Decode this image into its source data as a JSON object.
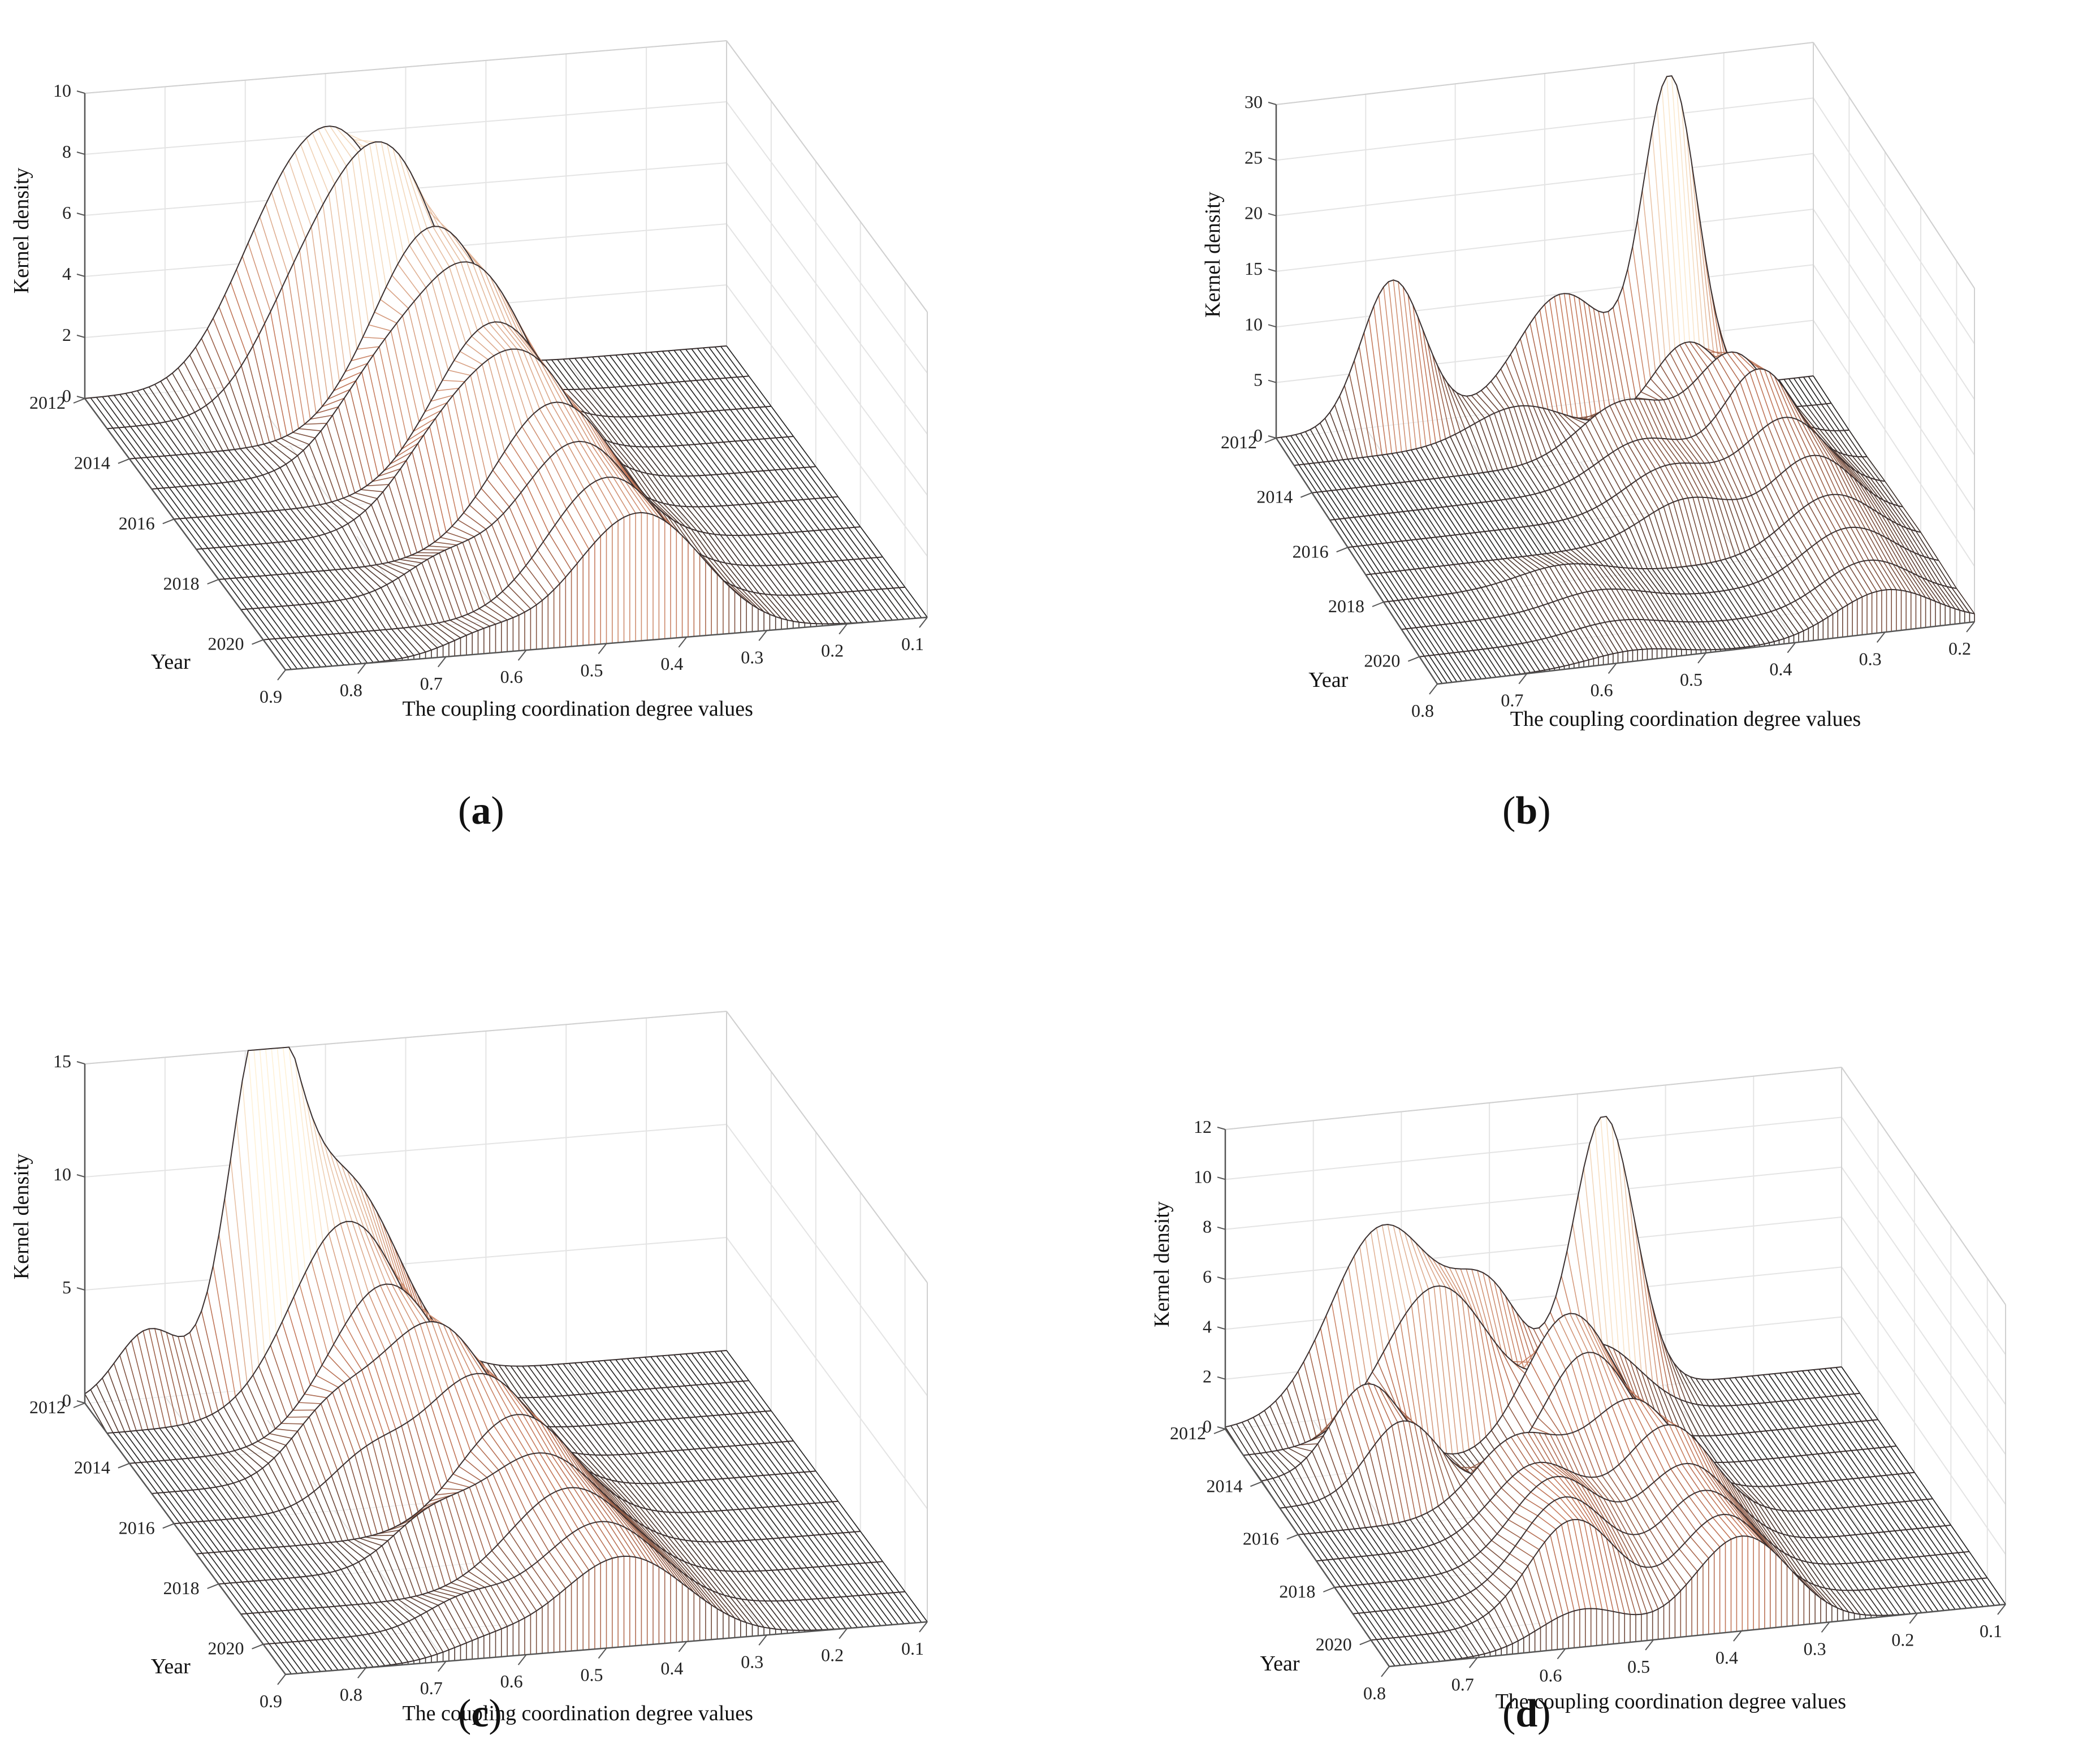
{
  "chart_data": [
    {
      "id": "a",
      "type": "surface",
      "panel_label": "a",
      "xlabel": "The coupling coordination degree values",
      "ylabel": "Year",
      "zlabel": "Kernel density",
      "xlim": [
        0.1,
        0.9
      ],
      "x_ticks": [
        "0.9",
        "0.8",
        "0.7",
        "0.6",
        "0.5",
        "0.4",
        "0.3",
        "0.2",
        "0.1"
      ],
      "year_ticks": [
        "2012",
        "2014",
        "2016",
        "2018",
        "2020"
      ],
      "z_ticks": [
        "0",
        "2",
        "4",
        "6",
        "8",
        "10"
      ],
      "zlim": [
        0,
        10
      ],
      "years": [
        2012,
        2013,
        2014,
        2015,
        2016,
        2017,
        2018,
        2019,
        2020,
        2021
      ],
      "densities": [
        {
          "year": 2012,
          "peaks": [
            {
              "center": 0.58,
              "height": 7.5,
              "width": 0.075
            },
            {
              "center": 0.68,
              "height": 2.5,
              "width": 0.06
            }
          ]
        },
        {
          "year": 2013,
          "peaks": [
            {
              "center": 0.55,
              "height": 8.0,
              "width": 0.07
            },
            {
              "center": 0.66,
              "height": 3.0,
              "width": 0.06
            }
          ]
        },
        {
          "year": 2014,
          "peaks": [
            {
              "center": 0.52,
              "height": 6.8,
              "width": 0.075
            }
          ]
        },
        {
          "year": 2015,
          "peaks": [
            {
              "center": 0.5,
              "height": 6.2,
              "width": 0.07
            },
            {
              "center": 0.62,
              "height": 2.5,
              "width": 0.06
            }
          ]
        },
        {
          "year": 2016,
          "peaks": [
            {
              "center": 0.5,
              "height": 5.6,
              "width": 0.075
            }
          ]
        },
        {
          "year": 2017,
          "peaks": [
            {
              "center": 0.49,
              "height": 5.2,
              "width": 0.07
            },
            {
              "center": 0.6,
              "height": 2.2,
              "width": 0.06
            }
          ]
        },
        {
          "year": 2018,
          "peaks": [
            {
              "center": 0.48,
              "height": 4.9,
              "width": 0.075
            }
          ]
        },
        {
          "year": 2019,
          "peaks": [
            {
              "center": 0.48,
              "height": 4.6,
              "width": 0.075
            },
            {
              "center": 0.65,
              "height": 1.0,
              "width": 0.05
            }
          ]
        },
        {
          "year": 2020,
          "peaks": [
            {
              "center": 0.47,
              "height": 4.4,
              "width": 0.075
            }
          ]
        },
        {
          "year": 2021,
          "peaks": [
            {
              "center": 0.46,
              "height": 4.2,
              "width": 0.08
            },
            {
              "center": 0.65,
              "height": 0.6,
              "width": 0.05
            }
          ]
        }
      ]
    },
    {
      "id": "b",
      "type": "surface",
      "panel_label": "b",
      "xlabel": "The coupling coordination degree values",
      "ylabel": "Year",
      "zlabel": "Kernel density",
      "xlim": [
        0.2,
        0.8
      ],
      "x_ticks": [
        "0.8",
        "0.7",
        "0.6",
        "0.5",
        "0.4",
        "0.3",
        "0.2"
      ],
      "year_ticks": [
        "2012",
        "2014",
        "2016",
        "2018",
        "2020"
      ],
      "z_ticks": [
        "0",
        "5",
        "10",
        "15",
        "20",
        "25",
        "30"
      ],
      "zlim": [
        0,
        30
      ],
      "years": [
        2012,
        2013,
        2014,
        2015,
        2016,
        2017,
        2018,
        2019,
        2020,
        2021
      ],
      "densities": [
        {
          "year": 2012,
          "peaks": [
            {
              "center": 0.67,
              "height": 13.0,
              "width": 0.035
            },
            {
              "center": 0.48,
              "height": 10.0,
              "width": 0.05
            },
            {
              "center": 0.36,
              "height": 28.0,
              "width": 0.03
            }
          ]
        },
        {
          "year": 2013,
          "peaks": [
            {
              "center": 0.55,
              "height": 3.0,
              "width": 0.05
            },
            {
              "center": 0.36,
              "height": 7.0,
              "width": 0.04
            }
          ]
        },
        {
          "year": 2014,
          "peaks": [
            {
              "center": 0.45,
              "height": 5.0,
              "width": 0.05
            },
            {
              "center": 0.33,
              "height": 8.0,
              "width": 0.04
            }
          ]
        },
        {
          "year": 2015,
          "peaks": [
            {
              "center": 0.45,
              "height": 4.0,
              "width": 0.05
            },
            {
              "center": 0.32,
              "height": 9.0,
              "width": 0.04
            }
          ]
        },
        {
          "year": 2016,
          "peaks": [
            {
              "center": 0.44,
              "height": 4.0,
              "width": 0.05
            },
            {
              "center": 0.31,
              "height": 7.0,
              "width": 0.045
            }
          ]
        },
        {
          "year": 2017,
          "peaks": [
            {
              "center": 0.44,
              "height": 3.5,
              "width": 0.05
            },
            {
              "center": 0.3,
              "height": 6.0,
              "width": 0.045
            }
          ]
        },
        {
          "year": 2018,
          "peaks": [
            {
              "center": 0.6,
              "height": 1.5,
              "width": 0.05
            },
            {
              "center": 0.3,
              "height": 5.0,
              "width": 0.05
            }
          ]
        },
        {
          "year": 2019,
          "peaks": [
            {
              "center": 0.58,
              "height": 1.5,
              "width": 0.05
            },
            {
              "center": 0.3,
              "height": 4.5,
              "width": 0.05
            }
          ]
        },
        {
          "year": 2020,
          "peaks": [
            {
              "center": 0.58,
              "height": 1.2,
              "width": 0.05
            },
            {
              "center": 0.3,
              "height": 4.0,
              "width": 0.05
            }
          ]
        },
        {
          "year": 2021,
          "peaks": [
            {
              "center": 0.58,
              "height": 1.0,
              "width": 0.05
            },
            {
              "center": 0.3,
              "height": 3.8,
              "width": 0.055
            }
          ]
        }
      ]
    },
    {
      "id": "c",
      "type": "surface",
      "panel_label": "c",
      "xlabel": "The coupling coordination degree values",
      "ylabel": "Year",
      "zlabel": "Kernel density",
      "xlim": [
        0.1,
        0.9
      ],
      "x_ticks": [
        "0.9",
        "0.8",
        "0.7",
        "0.6",
        "0.5",
        "0.4",
        "0.3",
        "0.2",
        "0.1"
      ],
      "year_ticks": [
        "2012",
        "2014",
        "2016",
        "2018",
        "2020"
      ],
      "z_ticks": [
        "0",
        "5",
        "10",
        "15"
      ],
      "zlim": [
        0,
        15
      ],
      "years": [
        2012,
        2013,
        2014,
        2015,
        2016,
        2017,
        2018,
        2019,
        2020,
        2021
      ],
      "densities": [
        {
          "year": 2012,
          "peaks": [
            {
              "center": 0.68,
              "height": 14.0,
              "width": 0.04
            },
            {
              "center": 0.58,
              "height": 9.0,
              "width": 0.07
            },
            {
              "center": 0.82,
              "height": 3.0,
              "width": 0.04
            }
          ]
        },
        {
          "year": 2013,
          "peaks": [
            {
              "center": 0.6,
              "height": 8.5,
              "width": 0.07
            }
          ]
        },
        {
          "year": 2014,
          "peaks": [
            {
              "center": 0.58,
              "height": 7.0,
              "width": 0.07
            }
          ]
        },
        {
          "year": 2015,
          "peaks": [
            {
              "center": 0.55,
              "height": 6.5,
              "width": 0.07
            },
            {
              "center": 0.68,
              "height": 2.5,
              "width": 0.05
            }
          ]
        },
        {
          "year": 2016,
          "peaks": [
            {
              "center": 0.52,
              "height": 5.5,
              "width": 0.07
            },
            {
              "center": 0.66,
              "height": 2.0,
              "width": 0.05
            }
          ]
        },
        {
          "year": 2017,
          "peaks": [
            {
              "center": 0.5,
              "height": 5.0,
              "width": 0.07
            }
          ]
        },
        {
          "year": 2018,
          "peaks": [
            {
              "center": 0.5,
              "height": 4.6,
              "width": 0.075
            },
            {
              "center": 0.64,
              "height": 1.8,
              "width": 0.05
            }
          ]
        },
        {
          "year": 2019,
          "peaks": [
            {
              "center": 0.49,
              "height": 4.4,
              "width": 0.075
            }
          ]
        },
        {
          "year": 2020,
          "peaks": [
            {
              "center": 0.48,
              "height": 4.2,
              "width": 0.075
            },
            {
              "center": 0.65,
              "height": 1.2,
              "width": 0.05
            }
          ]
        },
        {
          "year": 2021,
          "peaks": [
            {
              "center": 0.48,
              "height": 4.0,
              "width": 0.08
            },
            {
              "center": 0.65,
              "height": 0.6,
              "width": 0.05
            }
          ]
        }
      ]
    },
    {
      "id": "d",
      "type": "surface",
      "panel_label": "d",
      "xlabel": "The coupling coordination degree values",
      "ylabel": "Year",
      "zlabel": "Kernel density",
      "xlim": [
        0.1,
        0.8
      ],
      "x_ticks": [
        "0.8",
        "0.7",
        "0.6",
        "0.5",
        "0.4",
        "0.3",
        "0.2",
        "0.1"
      ],
      "year_ticks": [
        "2012",
        "2014",
        "2016",
        "2018",
        "2020"
      ],
      "z_ticks": [
        "0",
        "2",
        "4",
        "6",
        "8",
        "10",
        "12"
      ],
      "zlim": [
        0,
        12
      ],
      "years": [
        2012,
        2013,
        2014,
        2015,
        2016,
        2017,
        2018,
        2019,
        2020,
        2021
      ],
      "densities": [
        {
          "year": 2012,
          "peaks": [
            {
              "center": 0.62,
              "height": 7.5,
              "width": 0.06
            },
            {
              "center": 0.5,
              "height": 4.0,
              "width": 0.04
            },
            {
              "center": 0.37,
              "height": 11.0,
              "width": 0.035
            }
          ]
        },
        {
          "year": 2013,
          "peaks": [
            {
              "center": 0.58,
              "height": 6.0,
              "width": 0.06
            },
            {
              "center": 0.4,
              "height": 3.0,
              "width": 0.05
            }
          ]
        },
        {
          "year": 2014,
          "peaks": [
            {
              "center": 0.68,
              "height": 3.5,
              "width": 0.04
            },
            {
              "center": 0.45,
              "height": 5.5,
              "width": 0.05
            }
          ]
        },
        {
          "year": 2015,
          "peaks": [
            {
              "center": 0.66,
              "height": 3.0,
              "width": 0.04
            },
            {
              "center": 0.45,
              "height": 5.0,
              "width": 0.05
            }
          ]
        },
        {
          "year": 2016,
          "peaks": [
            {
              "center": 0.55,
              "height": 3.0,
              "width": 0.05
            },
            {
              "center": 0.42,
              "height": 4.0,
              "width": 0.05
            }
          ]
        },
        {
          "year": 2017,
          "peaks": [
            {
              "center": 0.55,
              "height": 3.0,
              "width": 0.05
            },
            {
              "center": 0.4,
              "height": 4.0,
              "width": 0.05
            }
          ]
        },
        {
          "year": 2018,
          "peaks": [
            {
              "center": 0.55,
              "height": 3.5,
              "width": 0.05
            },
            {
              "center": 0.4,
              "height": 3.5,
              "width": 0.05
            }
          ]
        },
        {
          "year": 2019,
          "peaks": [
            {
              "center": 0.56,
              "height": 3.8,
              "width": 0.05
            },
            {
              "center": 0.4,
              "height": 3.5,
              "width": 0.05
            }
          ]
        },
        {
          "year": 2020,
          "peaks": [
            {
              "center": 0.57,
              "height": 4.0,
              "width": 0.05
            },
            {
              "center": 0.4,
              "height": 3.6,
              "width": 0.05
            }
          ]
        },
        {
          "year": 2021,
          "peaks": [
            {
              "center": 0.58,
              "height": 1.5,
              "width": 0.05
            },
            {
              "center": 0.4,
              "height": 3.8,
              "width": 0.055
            }
          ]
        }
      ]
    }
  ],
  "colors": {
    "low": "#1e1e1e",
    "high": "#fff1d6",
    "grid": "#e4e4e4",
    "axis": "#555555"
  }
}
